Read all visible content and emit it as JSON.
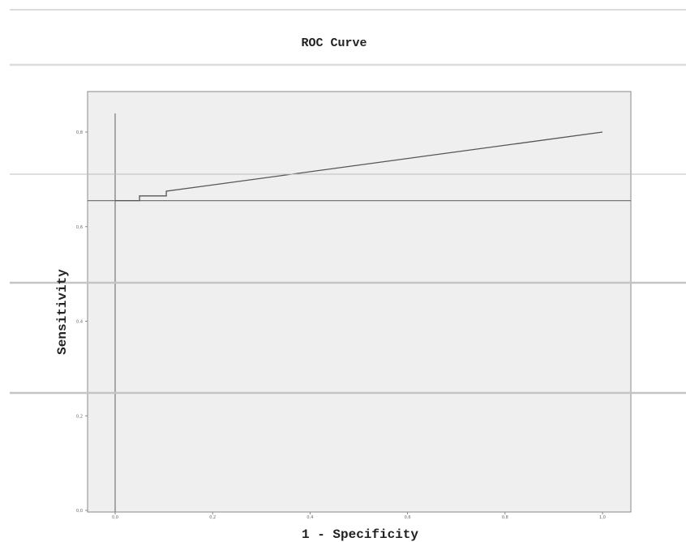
{
  "chart_data": {
    "type": "line",
    "title": "ROC Curve",
    "xlabel": "1 - Specificity",
    "ylabel": "Sensitivity",
    "xlim": [
      0.0,
      1.0
    ],
    "ylim": [
      0.0,
      1.0
    ],
    "x_ticks": [
      0.0,
      0.2,
      0.4,
      0.6,
      0.8,
      1.0
    ],
    "x_tick_labels": [
      "0,0",
      "0,2",
      "0,4",
      "0,6",
      "0,8",
      "1,0"
    ],
    "y_ticks": [
      0.0,
      0.2,
      0.4,
      0.6,
      0.8
    ],
    "y_tick_labels": [
      "0,0",
      "0,2",
      "0,4",
      "0,6",
      "0,8"
    ],
    "grid": false,
    "legend": "none",
    "series": [
      {
        "x": [
          0.0,
          0.05,
          0.05,
          0.105,
          0.105,
          1.0
        ],
        "y": [
          0.655,
          0.655,
          0.665,
          0.665,
          0.675,
          0.8
        ]
      }
    ],
    "reference_lines": {
      "vertical_x": 0.0,
      "horizontal_y": 0.655
    },
    "colors": {
      "plot_background": "#efefef",
      "frame": "#888888",
      "line": "#555555"
    }
  }
}
